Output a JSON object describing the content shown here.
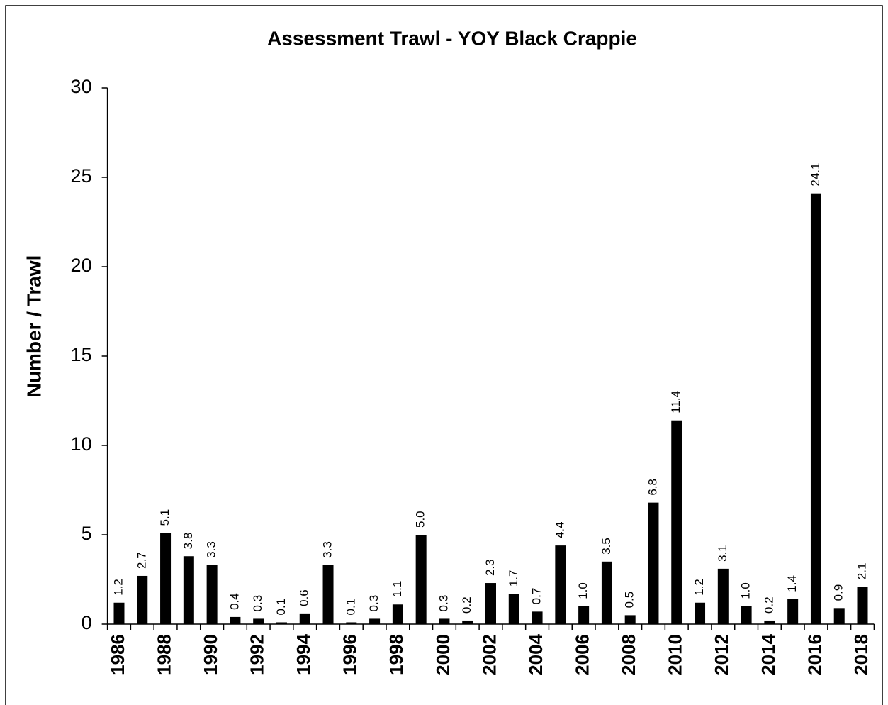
{
  "chart_data": {
    "type": "bar",
    "title": "Assessment Trawl - YOY Black Crappie",
    "y_label": "Number / Trawl",
    "categories": [
      "1986",
      null,
      "1988",
      null,
      "1990",
      null,
      "1992",
      null,
      "1994",
      null,
      "1996",
      null,
      "1998",
      null,
      "2000",
      null,
      "2002",
      null,
      "2004",
      null,
      "2006",
      null,
      "2008",
      null,
      "2010",
      null,
      "2012",
      null,
      "2014",
      null,
      "2016",
      null,
      "2018"
    ],
    "values": [
      1.2,
      2.7,
      5.1,
      3.8,
      3.3,
      0.4,
      0.3,
      0.1,
      0.6,
      3.3,
      0.1,
      0.3,
      1.1,
      5.0,
      0.3,
      0.2,
      2.3,
      1.7,
      0.7,
      4.4,
      1.0,
      3.5,
      0.5,
      6.8,
      11.4,
      1.2,
      3.1,
      1.0,
      0.2,
      1.4,
      24.1,
      0.9,
      2.1
    ],
    "value_labels": [
      "1.2",
      "2.7",
      "5.1",
      "3.8",
      "3.3",
      "0.4",
      "0.3",
      "0.1",
      "0.6",
      "3.3",
      "0.1",
      "0.3",
      "1.1",
      "5.0",
      "0.3",
      "0.2",
      "2.3",
      "1.7",
      "0.7",
      "4.4",
      "1.0",
      "3.5",
      "0.5",
      "6.8",
      "11.4",
      "1.2",
      "3.1",
      "1.0",
      "0.2",
      "1.4",
      "24.1",
      "0.9",
      "2.1"
    ],
    "color": "#000000",
    "ylim": [
      0,
      30
    ],
    "yticks": [
      0,
      5,
      10,
      15,
      20,
      25,
      30
    ],
    "grid": false
  }
}
